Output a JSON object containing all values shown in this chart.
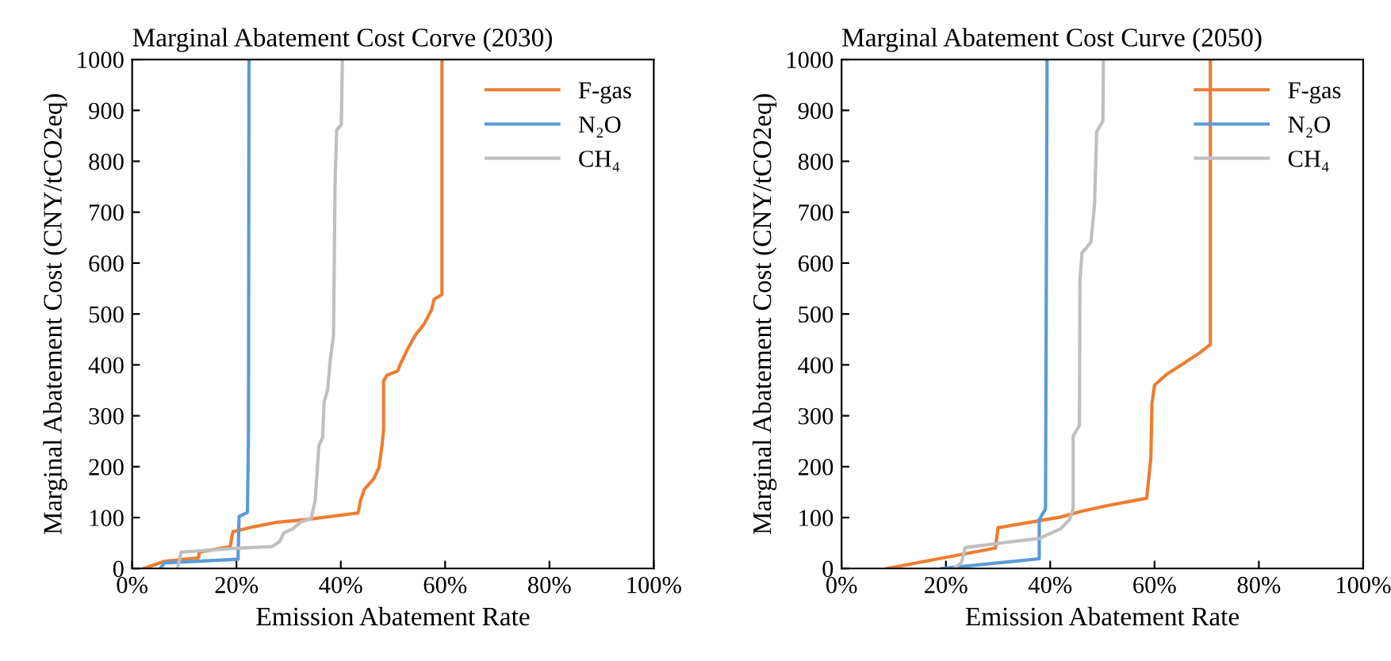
{
  "chart_data": [
    {
      "type": "line",
      "title": "Marginal Abatement Cost Corve (2030)",
      "xlabel": "Emission Abatement Rate",
      "ylabel": "Marginal Abatement Cost (CNY/tCO2eq)",
      "xlim": [
        0,
        100
      ],
      "xticks": [
        {
          "value": 0,
          "label": "0%"
        },
        {
          "value": 20,
          "label": "20%"
        },
        {
          "value": 40,
          "label": "40%"
        },
        {
          "value": 60,
          "label": "60%"
        },
        {
          "value": 80,
          "label": "80%"
        },
        {
          "value": 100,
          "label": "100%"
        }
      ],
      "ylim": [
        0,
        1000
      ],
      "yticks": [
        0,
        100,
        200,
        300,
        400,
        500,
        600,
        700,
        800,
        900,
        1000
      ],
      "grid": false,
      "legend": "top right",
      "marker": "none",
      "line_style": "solid",
      "series": [
        {
          "name": "F-gas",
          "color": "#ed7d31",
          "x": [
            2.2,
            6.2,
            12.7,
            12.9,
            18.8,
            19.3,
            23.3,
            27.9,
            33.3,
            43.3,
            43.8,
            44.5,
            46.3,
            47.3,
            47.9,
            48.2,
            48.2,
            48.9,
            50.9,
            51.4,
            52.9,
            54.4,
            55.9,
            57.4,
            57.9,
            59.4,
            59.4
          ],
          "values": [
            0,
            14,
            21,
            32,
            43,
            72,
            82,
            91,
            96,
            109,
            134,
            155,
            176,
            198,
            241,
            273,
            369,
            380,
            388,
            401,
            433,
            460,
            479,
            508,
            529,
            538,
            1000
          ]
        },
        {
          "name": "N₂O",
          "color": "#5b9bd5",
          "x": [
            5.4,
            6.2,
            20.3,
            20.5,
            22.1,
            22.3,
            22.4
          ],
          "values": [
            0,
            11,
            18,
            102,
            110,
            262,
            1000
          ]
        },
        {
          "name": "CH₄",
          "color": "#bfbfbf",
          "x": [
            8.7,
            9.4,
            20.3,
            26.8,
            28.3,
            29.1,
            30.8,
            32.3,
            34.3,
            35.1,
            35.8,
            36.5,
            36.8,
            37.5,
            38.0,
            38.6,
            38.9,
            39.2,
            40.1,
            40.3
          ],
          "values": [
            0,
            32,
            40,
            43,
            53,
            70,
            78,
            91,
            98,
            134,
            241,
            257,
            326,
            353,
            412,
            457,
            754,
            861,
            872,
            1000
          ]
        }
      ]
    },
    {
      "type": "line",
      "title": "Marginal Abatement Cost Curve (2050)",
      "xlabel": "Emission Abatement Rate",
      "ylabel": "Marginal Abatement Cost (CNY/tCO2eq)",
      "xlim": [
        0,
        100
      ],
      "xticks": [
        {
          "value": 0,
          "label": "0%"
        },
        {
          "value": 20,
          "label": "20%"
        },
        {
          "value": 40,
          "label": "40%"
        },
        {
          "value": 60,
          "label": "60%"
        },
        {
          "value": 80,
          "label": "80%"
        },
        {
          "value": 100,
          "label": "100%"
        }
      ],
      "ylim": [
        0,
        1000
      ],
      "yticks": [
        0,
        100,
        200,
        300,
        400,
        500,
        600,
        700,
        800,
        900,
        1000
      ],
      "grid": false,
      "legend": "top right",
      "marker": "none",
      "line_style": "solid",
      "series": [
        {
          "name": "F-gas",
          "color": "#ed7d31",
          "x": [
            8.7,
            19.6,
            29.5,
            30.0,
            39.1,
            42.0,
            45.9,
            50.7,
            58.5,
            59.3,
            59.5,
            60.0,
            62.4,
            65.3,
            68.7,
            70.7,
            70.7
          ],
          "values": [
            0,
            21,
            40,
            80,
            96,
            101,
            112,
            123,
            138,
            218,
            323,
            360,
            382,
            401,
            424,
            440,
            1000
          ]
        },
        {
          "name": "N₂O",
          "color": "#5b9bd5",
          "x": [
            19.2,
            22.1,
            37.9,
            37.9,
            39.1,
            39.4
          ],
          "values": [
            0,
            3,
            19,
            96,
            117,
            1000
          ]
        },
        {
          "name": "CH₄",
          "color": "#bfbfbf",
          "x": [
            21.6,
            23.0,
            23.7,
            31.3,
            37.9,
            42.0,
            43.7,
            44.4,
            44.4,
            45.6,
            45.7,
            46.1,
            47.8,
            48.5,
            48.9,
            50.1,
            50.2
          ],
          "values": [
            0,
            12,
            41,
            51,
            59,
            78,
            96,
            117,
            260,
            281,
            567,
            620,
            641,
            715,
            858,
            879,
            1000
          ]
        }
      ]
    }
  ]
}
